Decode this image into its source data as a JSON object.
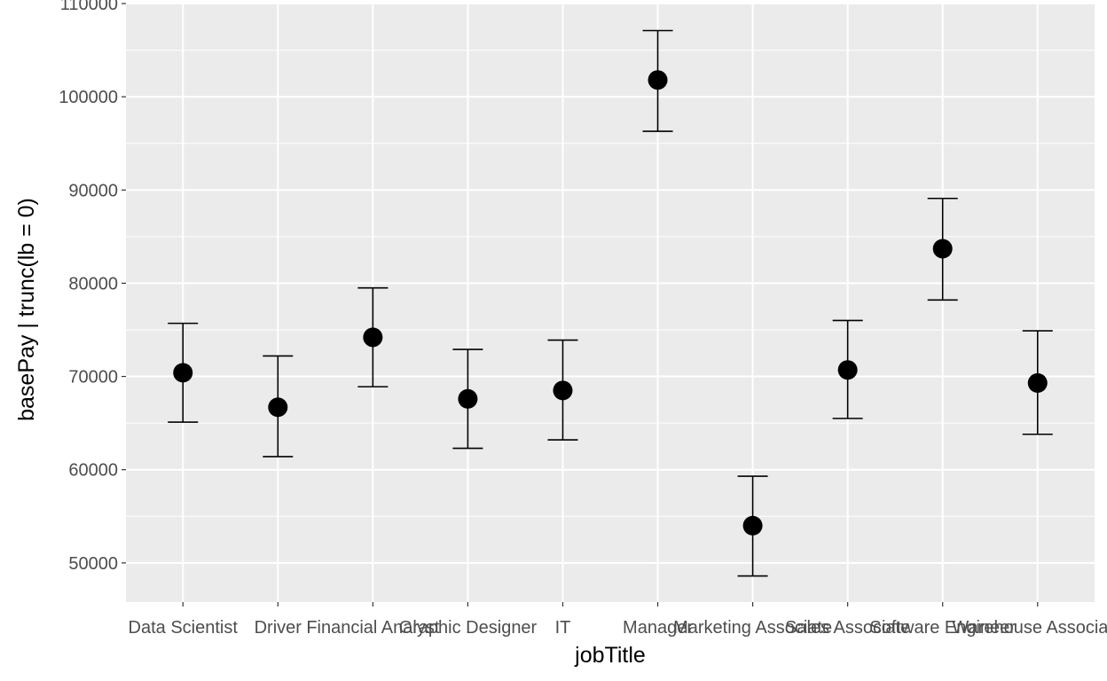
{
  "chart_data": {
    "type": "scatter",
    "subtype": "point-errorbar",
    "xlabel": "jobTitle",
    "ylabel": "basePay | trunc(lb = 0)",
    "categories": [
      "Data Scientist",
      "Driver",
      "Financial Analyst",
      "Graphic Designer",
      "IT",
      "Manager",
      "Marketing Associate",
      "Sales Associate",
      "Software Engineer",
      "Warehouse Associate"
    ],
    "values": [
      70400,
      66700,
      74200,
      67600,
      68500,
      101800,
      54000,
      70700,
      83700,
      69300
    ],
    "lower": [
      65100,
      61400,
      68900,
      62300,
      63200,
      96300,
      48600,
      65500,
      78200,
      63800
    ],
    "upper": [
      75700,
      72200,
      79500,
      72900,
      73900,
      107100,
      59300,
      76000,
      89100,
      74900
    ],
    "ylim": [
      45800,
      110000
    ],
    "yticks": [
      50000,
      60000,
      70000,
      80000,
      90000,
      100000,
      110000
    ],
    "ytick_labels": [
      "50000",
      "60000",
      "70000",
      "80000",
      "90000",
      "100000",
      "110000"
    ],
    "grid": true,
    "legend": "none",
    "colors": {
      "panel": "#ebebeb",
      "grid": "#ffffff",
      "point": "#000000",
      "errorbar": "#000000",
      "tick_text": "#4d4d4d",
      "title_text": "#000000"
    }
  }
}
